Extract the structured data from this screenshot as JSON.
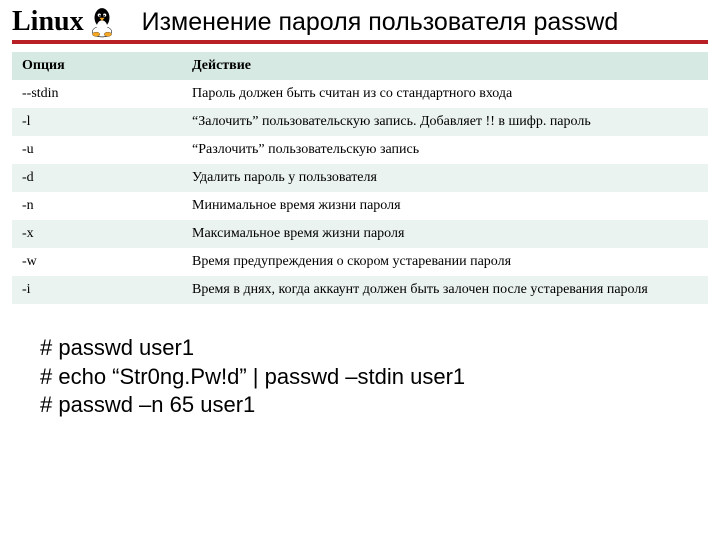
{
  "header": {
    "logo_text": "Linux",
    "title": "Изменение пароля пользователя passwd"
  },
  "colors": {
    "header_row_bg": "#d6e9e3",
    "row_even_bg": "#eaf3f0",
    "row_odd_bg": "#ffffff",
    "redline": "#b92025"
  },
  "table": {
    "columns": [
      "Опция",
      "Действие"
    ],
    "rows": [
      [
        "--stdin",
        "Пароль должен быть считан из со стандартного входа"
      ],
      [
        "-l",
        "“Залочить” пользовательскую запись. Добавляет !! в шифр. пароль"
      ],
      [
        "-u",
        "“Разлочить” пользовательскую запись"
      ],
      [
        "-d",
        "Удалить пароль у пользователя"
      ],
      [
        "-n",
        "Минимальное время жизни пароля"
      ],
      [
        "-x",
        "Максимальное время жизни пароля"
      ],
      [
        "-w",
        "Время предупреждения о скором устаревании пароля"
      ],
      [
        "-i",
        "Время в днях, когда аккаунт должен быть залочен после устаревания пароля"
      ]
    ]
  },
  "commands": {
    "line1": "# passwd user1",
    "line2": "# echo “Str0ng.Pw!d” | passwd –stdin user1",
    "line3": "# passwd –n 65 user1"
  }
}
